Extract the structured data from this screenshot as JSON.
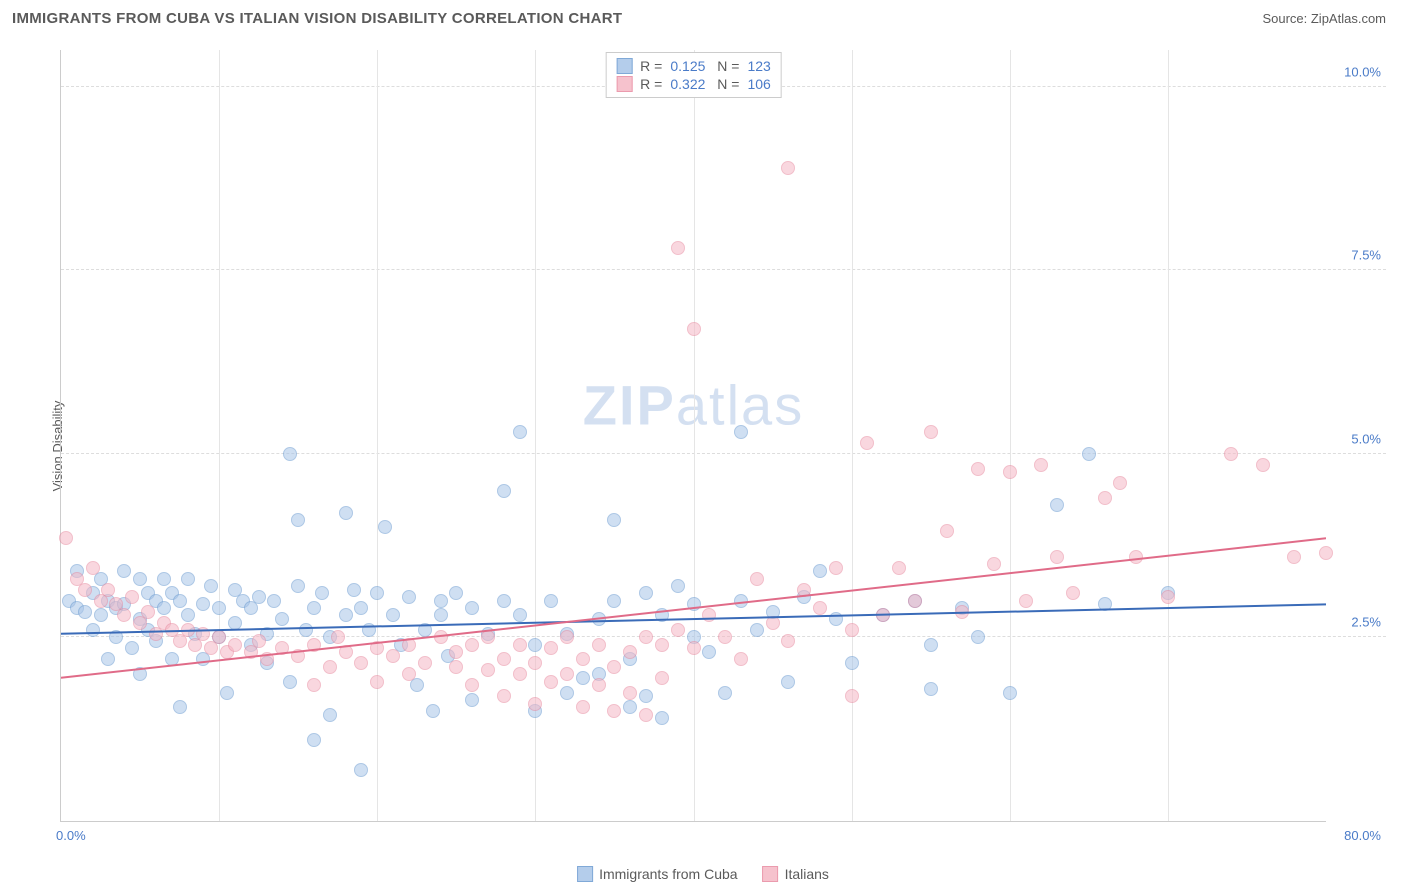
{
  "header": {
    "title": "IMMIGRANTS FROM CUBA VS ITALIAN VISION DISABILITY CORRELATION CHART",
    "source": "Source: ZipAtlas.com"
  },
  "ylabel": "Vision Disability",
  "watermark_prefix": "ZIP",
  "watermark_suffix": "atlas",
  "chart": {
    "type": "scatter",
    "xlim": [
      0,
      80
    ],
    "ylim": [
      0,
      10.5
    ],
    "xtick_labels": [
      {
        "pos": 0,
        "label": "0.0%"
      },
      {
        "pos": 100,
        "label": "80.0%"
      }
    ],
    "ytick_labels": [
      {
        "pos": 2.5,
        "label": "2.5%"
      },
      {
        "pos": 5.0,
        "label": "5.0%"
      },
      {
        "pos": 7.5,
        "label": "7.5%"
      },
      {
        "pos": 10.0,
        "label": "10.0%"
      }
    ],
    "gridlines_h": [
      2.5,
      5.0,
      7.5,
      10.0
    ],
    "gridlines_v": [
      10,
      20,
      30,
      40,
      50,
      60,
      70
    ],
    "background_color": "#ffffff",
    "grid_color": "#dddddd",
    "axis_color": "#cccccc",
    "label_color": "#4a7bc8",
    "marker_radius": 7,
    "marker_stroke_width": 1.5
  },
  "series": [
    {
      "name": "Immigrants from Cuba",
      "fill_color": "#a8c5e8",
      "stroke_color": "#6b9bd1",
      "fill_opacity": 0.55,
      "trend": {
        "y_start": 2.55,
        "y_end": 2.95,
        "color": "#3a6bb8",
        "width": 2
      },
      "stats": {
        "r": "0.125",
        "n": "123"
      },
      "points": [
        [
          0.5,
          3.0
        ],
        [
          1,
          2.9
        ],
        [
          1,
          3.4
        ],
        [
          1.5,
          2.85
        ],
        [
          2,
          2.6
        ],
        [
          2,
          3.1
        ],
        [
          2.5,
          2.8
        ],
        [
          2.5,
          3.3
        ],
        [
          3,
          3.0
        ],
        [
          3,
          2.2
        ],
        [
          3.5,
          2.9
        ],
        [
          3.5,
          2.5
        ],
        [
          4,
          3.4
        ],
        [
          4,
          2.95
        ],
        [
          4.5,
          2.35
        ],
        [
          5,
          2.75
        ],
        [
          5,
          3.3
        ],
        [
          5,
          2.0
        ],
        [
          5.5,
          3.1
        ],
        [
          5.5,
          2.6
        ],
        [
          6,
          3.0
        ],
        [
          6,
          2.45
        ],
        [
          6.5,
          2.9
        ],
        [
          6.5,
          3.3
        ],
        [
          7,
          2.2
        ],
        [
          7,
          3.1
        ],
        [
          7.5,
          3.0
        ],
        [
          7.5,
          1.55
        ],
        [
          8,
          2.8
        ],
        [
          8,
          3.3
        ],
        [
          8.5,
          2.55
        ],
        [
          9,
          2.95
        ],
        [
          9,
          2.2
        ],
        [
          9.5,
          3.2
        ],
        [
          10,
          2.9
        ],
        [
          10,
          2.5
        ],
        [
          10.5,
          1.75
        ],
        [
          11,
          3.15
        ],
        [
          11,
          2.7
        ],
        [
          11.5,
          3.0
        ],
        [
          12,
          2.4
        ],
        [
          12,
          2.9
        ],
        [
          12.5,
          3.05
        ],
        [
          13,
          2.55
        ],
        [
          13,
          2.15
        ],
        [
          13.5,
          3.0
        ],
        [
          14,
          2.75
        ],
        [
          14.5,
          5.0
        ],
        [
          14.5,
          1.9
        ],
        [
          15,
          3.2
        ],
        [
          15,
          4.1
        ],
        [
          15.5,
          2.6
        ],
        [
          16,
          2.9
        ],
        [
          16,
          1.1
        ],
        [
          16.5,
          3.1
        ],
        [
          17,
          2.5
        ],
        [
          17,
          1.45
        ],
        [
          18,
          4.2
        ],
        [
          18,
          2.8
        ],
        [
          18.5,
          3.15
        ],
        [
          19,
          0.7
        ],
        [
          19,
          2.9
        ],
        [
          19.5,
          2.6
        ],
        [
          20,
          3.1
        ],
        [
          20.5,
          4.0
        ],
        [
          21,
          2.8
        ],
        [
          21.5,
          2.4
        ],
        [
          22,
          3.05
        ],
        [
          22.5,
          1.85
        ],
        [
          23,
          2.6
        ],
        [
          23.5,
          1.5
        ],
        [
          24,
          3.0
        ],
        [
          24,
          2.8
        ],
        [
          24.5,
          2.25
        ],
        [
          25,
          3.1
        ],
        [
          26,
          2.9
        ],
        [
          26,
          1.65
        ],
        [
          27,
          2.55
        ],
        [
          28,
          3.0
        ],
        [
          28,
          4.5
        ],
        [
          29,
          5.3
        ],
        [
          29,
          2.8
        ],
        [
          30,
          1.5
        ],
        [
          30,
          2.4
        ],
        [
          31,
          3.0
        ],
        [
          32,
          1.75
        ],
        [
          32,
          2.55
        ],
        [
          33,
          1.95
        ],
        [
          34,
          2.75
        ],
        [
          34,
          2.0
        ],
        [
          35,
          4.1
        ],
        [
          35,
          3.0
        ],
        [
          36,
          2.2
        ],
        [
          36,
          1.55
        ],
        [
          37,
          3.1
        ],
        [
          37,
          1.7
        ],
        [
          38,
          2.8
        ],
        [
          38,
          1.4
        ],
        [
          39,
          3.2
        ],
        [
          40,
          2.5
        ],
        [
          40,
          2.95
        ],
        [
          41,
          2.3
        ],
        [
          42,
          1.75
        ],
        [
          43,
          3.0
        ],
        [
          43,
          5.3
        ],
        [
          44,
          2.6
        ],
        [
          45,
          2.85
        ],
        [
          46,
          1.9
        ],
        [
          47,
          3.05
        ],
        [
          48,
          3.4
        ],
        [
          49,
          2.75
        ],
        [
          50,
          2.15
        ],
        [
          52,
          2.8
        ],
        [
          54,
          3.0
        ],
        [
          55,
          2.4
        ],
        [
          55,
          1.8
        ],
        [
          57,
          2.9
        ],
        [
          58,
          2.5
        ],
        [
          60,
          1.75
        ],
        [
          63,
          4.3
        ],
        [
          65,
          5.0
        ],
        [
          66,
          2.95
        ],
        [
          70,
          3.1
        ]
      ]
    },
    {
      "name": "Italians",
      "fill_color": "#f5b8c5",
      "stroke_color": "#e88aa0",
      "fill_opacity": 0.55,
      "trend": {
        "y_start": 1.95,
        "y_end": 3.85,
        "color": "#e06b88",
        "width": 2
      },
      "stats": {
        "r": "0.322",
        "n": "106"
      },
      "points": [
        [
          0.3,
          3.85
        ],
        [
          1,
          3.3
        ],
        [
          1.5,
          3.15
        ],
        [
          2,
          3.45
        ],
        [
          2.5,
          3.0
        ],
        [
          3,
          3.15
        ],
        [
          3.5,
          2.95
        ],
        [
          4,
          2.8
        ],
        [
          4.5,
          3.05
        ],
        [
          5,
          2.7
        ],
        [
          5.5,
          2.85
        ],
        [
          6,
          2.55
        ],
        [
          6.5,
          2.7
        ],
        [
          7,
          2.6
        ],
        [
          7.5,
          2.45
        ],
        [
          8,
          2.6
        ],
        [
          8.5,
          2.4
        ],
        [
          9,
          2.55
        ],
        [
          9.5,
          2.35
        ],
        [
          10,
          2.5
        ],
        [
          10.5,
          2.3
        ],
        [
          11,
          2.4
        ],
        [
          12,
          2.3
        ],
        [
          12.5,
          2.45
        ],
        [
          13,
          2.2
        ],
        [
          14,
          2.35
        ],
        [
          15,
          2.25
        ],
        [
          16,
          2.4
        ],
        [
          16,
          1.85
        ],
        [
          17,
          2.1
        ],
        [
          17.5,
          2.5
        ],
        [
          18,
          2.3
        ],
        [
          19,
          2.15
        ],
        [
          20,
          2.35
        ],
        [
          20,
          1.9
        ],
        [
          21,
          2.25
        ],
        [
          22,
          2.4
        ],
        [
          22,
          2.0
        ],
        [
          23,
          2.15
        ],
        [
          24,
          2.5
        ],
        [
          25,
          2.1
        ],
        [
          25,
          2.3
        ],
        [
          26,
          2.4
        ],
        [
          26,
          1.85
        ],
        [
          27,
          2.5
        ],
        [
          27,
          2.05
        ],
        [
          28,
          2.2
        ],
        [
          28,
          1.7
        ],
        [
          29,
          2.4
        ],
        [
          29,
          2.0
        ],
        [
          30,
          2.15
        ],
        [
          30,
          1.6
        ],
        [
          31,
          2.35
        ],
        [
          31,
          1.9
        ],
        [
          32,
          2.5
        ],
        [
          32,
          2.0
        ],
        [
          33,
          2.2
        ],
        [
          33,
          1.55
        ],
        [
          34,
          2.4
        ],
        [
          34,
          1.85
        ],
        [
          35,
          2.1
        ],
        [
          35,
          1.5
        ],
        [
          36,
          2.3
        ],
        [
          36,
          1.75
        ],
        [
          37,
          2.5
        ],
        [
          37,
          1.45
        ],
        [
          38,
          2.4
        ],
        [
          38,
          1.95
        ],
        [
          39,
          2.6
        ],
        [
          39,
          7.8
        ],
        [
          40,
          2.35
        ],
        [
          40,
          6.7
        ],
        [
          41,
          2.8
        ],
        [
          42,
          2.5
        ],
        [
          43,
          2.2
        ],
        [
          44,
          3.3
        ],
        [
          45,
          2.7
        ],
        [
          46,
          8.9
        ],
        [
          46,
          2.45
        ],
        [
          47,
          3.15
        ],
        [
          48,
          2.9
        ],
        [
          49,
          3.45
        ],
        [
          50,
          2.6
        ],
        [
          50,
          1.7
        ],
        [
          51,
          5.15
        ],
        [
          52,
          2.8
        ],
        [
          53,
          3.45
        ],
        [
          54,
          3.0
        ],
        [
          55,
          5.3
        ],
        [
          56,
          3.95
        ],
        [
          57,
          2.85
        ],
        [
          58,
          4.8
        ],
        [
          59,
          3.5
        ],
        [
          60,
          4.75
        ],
        [
          61,
          3.0
        ],
        [
          62,
          4.85
        ],
        [
          63,
          3.6
        ],
        [
          64,
          3.1
        ],
        [
          66,
          4.4
        ],
        [
          67,
          4.6
        ],
        [
          68,
          3.6
        ],
        [
          70,
          3.05
        ],
        [
          74,
          5.0
        ],
        [
          76,
          4.85
        ],
        [
          78,
          3.6
        ],
        [
          80,
          3.65
        ]
      ]
    }
  ],
  "stats_legend": {
    "r_label": "R =",
    "n_label": "N ="
  },
  "bottom_legend": {
    "items": [
      {
        "swatch_fill": "#a8c5e8",
        "swatch_stroke": "#6b9bd1",
        "label": "Immigrants from Cuba"
      },
      {
        "swatch_fill": "#f5b8c5",
        "swatch_stroke": "#e88aa0",
        "label": "Italians"
      }
    ]
  }
}
